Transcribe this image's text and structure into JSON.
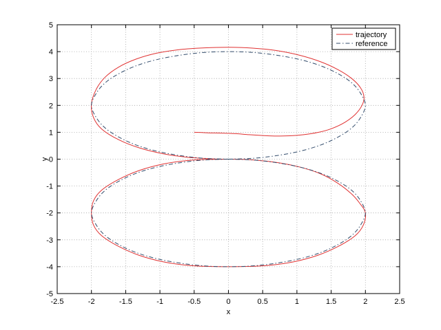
{
  "chart_data": {
    "type": "line",
    "xlabel": "x",
    "ylabel": "y",
    "xlim": [
      -2.5,
      2.5
    ],
    "ylim": [
      -5,
      5
    ],
    "xticks": [
      -2.5,
      -2,
      -1.5,
      -1,
      -0.5,
      0,
      0.5,
      1,
      1.5,
      2,
      2.5
    ],
    "yticks": [
      -5,
      -4,
      -3,
      -2,
      -1,
      0,
      1,
      2,
      3,
      4,
      5
    ],
    "xtick_labels": [
      "-2.5",
      "-2",
      "-1.5",
      "-1",
      "-0.5",
      "0",
      "0.5",
      "1",
      "1.5",
      "2",
      "2.5"
    ],
    "ytick_labels": [
      "-5",
      "-4",
      "-3",
      "-2",
      "-1",
      "0",
      "1",
      "2",
      "3",
      "4",
      "5"
    ],
    "grid": true,
    "legend_position": "top-right",
    "series": [
      {
        "name": "trajectory",
        "color": "#e03030",
        "style": "solid",
        "x": [
          -0.5,
          -0.3,
          -0.1,
          0.1,
          0.3,
          0.5,
          0.7,
          0.9,
          1.1,
          1.3,
          1.5,
          1.7,
          1.85,
          1.95,
          1.98,
          1.93,
          1.8,
          1.6,
          1.35,
          1.05,
          0.7,
          0.35,
          0,
          -0.35,
          -0.7,
          -1.05,
          -1.35,
          -1.6,
          -1.8,
          -1.93,
          -2.0,
          -1.97,
          -1.85,
          -1.6,
          -1.3,
          -0.95,
          -0.6,
          -0.3,
          -0.1,
          0,
          0.3,
          0.7,
          1.05,
          1.35,
          1.6,
          1.8,
          1.92,
          2.0,
          1.97,
          1.85,
          1.6,
          1.3,
          0.95,
          0.6,
          0.3,
          0,
          -0.3,
          -0.6,
          -0.95,
          -1.3,
          -1.6,
          -1.85,
          -1.97,
          -2.0,
          -1.97,
          -1.85,
          -1.6,
          -1.3,
          -0.95,
          -0.6,
          -0.3,
          0
        ],
        "y": [
          1.0,
          0.98,
          0.97,
          0.95,
          0.91,
          0.88,
          0.86,
          0.87,
          0.91,
          0.99,
          1.13,
          1.37,
          1.66,
          2.0,
          2.3,
          2.65,
          3.0,
          3.33,
          3.62,
          3.86,
          4.04,
          4.13,
          4.16,
          4.14,
          4.08,
          3.94,
          3.72,
          3.43,
          3.05,
          2.6,
          2.05,
          1.55,
          1.12,
          0.72,
          0.42,
          0.2,
          0.07,
          0.02,
          0.0,
          0.0,
          -0.02,
          -0.12,
          -0.3,
          -0.55,
          -0.9,
          -1.3,
          -1.65,
          -2.0,
          -2.45,
          -2.85,
          -3.25,
          -3.58,
          -3.82,
          -3.95,
          -3.99,
          -4.0,
          -3.99,
          -3.95,
          -3.82,
          -3.58,
          -3.25,
          -2.85,
          -2.45,
          -2.0,
          -1.55,
          -1.15,
          -0.75,
          -0.42,
          -0.18,
          -0.05,
          -0.01,
          0.0
        ]
      },
      {
        "name": "reference",
        "color": "#304a6a",
        "style": "dashdot",
        "x": [
          0,
          0.35,
          0.7,
          1.05,
          1.35,
          1.6,
          1.8,
          1.93,
          2.0,
          1.93,
          1.8,
          1.6,
          1.35,
          1.05,
          0.7,
          0.35,
          0,
          -0.35,
          -0.7,
          -1.05,
          -1.35,
          -1.6,
          -1.8,
          -1.93,
          -2.0,
          -1.93,
          -1.8,
          -1.6,
          -1.35,
          -1.05,
          -0.7,
          -0.35,
          0,
          0.35,
          0.7,
          1.05,
          1.35,
          1.6,
          1.8,
          1.93,
          2.0,
          1.93,
          1.8,
          1.6,
          1.35,
          1.05,
          0.7,
          0.35,
          0,
          -0.35,
          -0.7,
          -1.05,
          -1.35,
          -1.6,
          -1.8,
          -1.93,
          -2.0,
          -1.93,
          -1.8,
          -1.6,
          -1.35,
          -1.05,
          -0.7,
          -0.35,
          0
        ],
        "y": [
          0.0,
          0.03,
          0.13,
          0.3,
          0.53,
          0.82,
          1.16,
          1.55,
          2.0,
          2.45,
          2.84,
          3.18,
          3.47,
          3.7,
          3.87,
          3.97,
          4.0,
          3.97,
          3.87,
          3.7,
          3.47,
          3.18,
          2.84,
          2.45,
          2.0,
          1.55,
          1.16,
          0.82,
          0.53,
          0.3,
          0.13,
          0.03,
          0.0,
          -0.03,
          -0.13,
          -0.3,
          -0.53,
          -0.82,
          -1.16,
          -1.55,
          -2.0,
          -2.45,
          -2.84,
          -3.18,
          -3.47,
          -3.7,
          -3.87,
          -3.97,
          -4.0,
          -3.97,
          -3.87,
          -3.7,
          -3.47,
          -3.18,
          -2.84,
          -2.45,
          -2.0,
          -1.55,
          -1.16,
          -0.82,
          -0.53,
          -0.3,
          -0.13,
          -0.03,
          0.0
        ]
      }
    ]
  }
}
